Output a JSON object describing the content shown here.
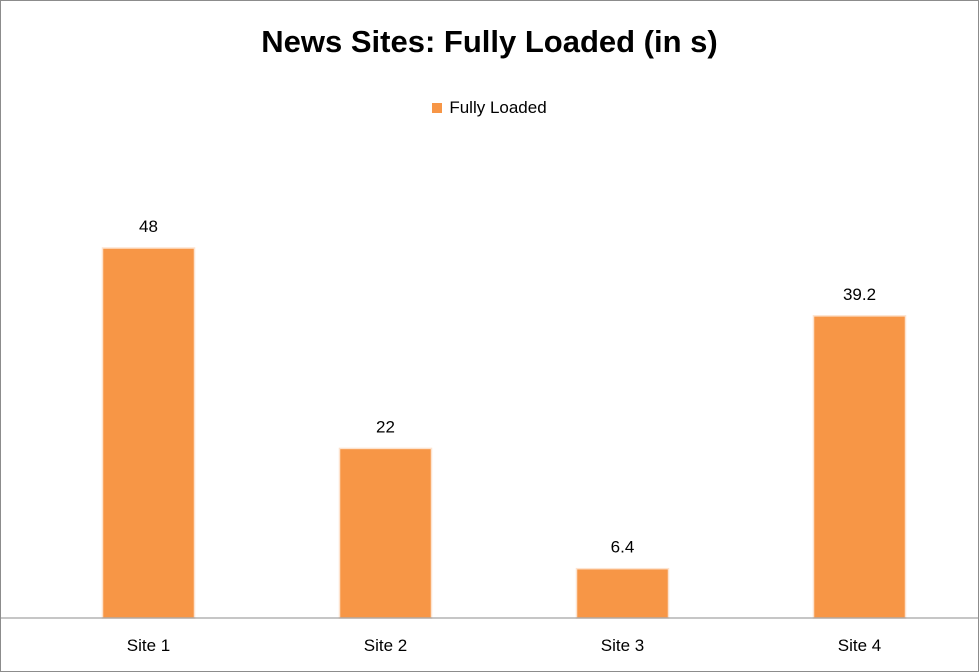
{
  "chart_data": {
    "type": "bar",
    "title": "News Sites: Fully Loaded (in s)",
    "categories": [
      "Site 1",
      "Site 2",
      "Site 3",
      "Site 4"
    ],
    "series": [
      {
        "name": "Fully Loaded",
        "values": [
          48,
          22,
          6.4,
          39.2
        ],
        "color": "#F79646"
      }
    ],
    "data_labels": [
      "48",
      "22",
      "6.4",
      "39.2"
    ],
    "xlabel": "",
    "ylabel": "",
    "ylim": [
      0,
      48
    ],
    "grid": false,
    "legend_position": "top"
  }
}
